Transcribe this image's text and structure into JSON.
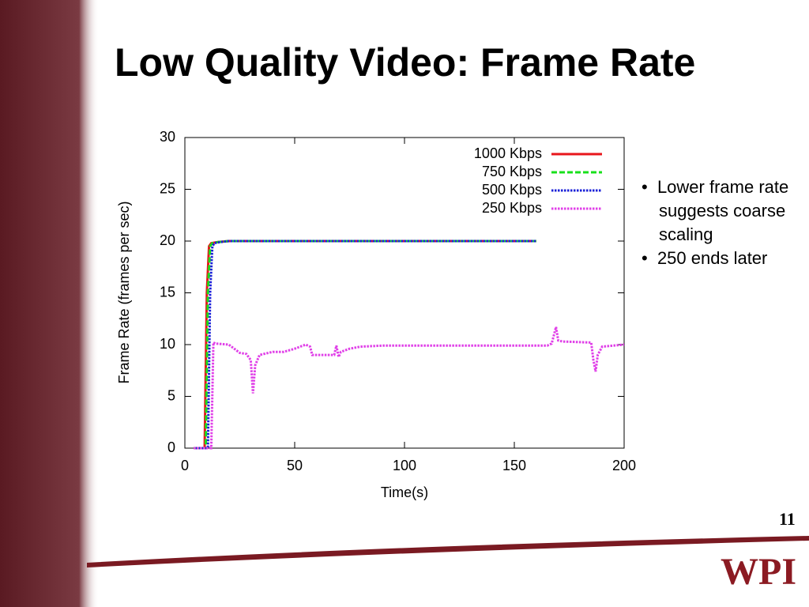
{
  "slide": {
    "title": "Low Quality Video: Frame Rate",
    "bullets": [
      "Lower frame rate suggests coarse scaling",
      "250 ends later"
    ],
    "number": "11",
    "logo": "WPI"
  },
  "chart_data": {
    "type": "line",
    "xlabel": "Time(s)",
    "ylabel": "Frame Rate (frames per sec)",
    "xlim": [
      0,
      200
    ],
    "ylim": [
      0,
      30
    ],
    "xticks": [
      0,
      50,
      100,
      150,
      200
    ],
    "yticks": [
      0,
      5,
      10,
      15,
      20,
      25,
      30
    ],
    "grid": false,
    "legend": "top-right",
    "series": [
      {
        "name": "1000 Kbps",
        "color": "#e8161b",
        "dash": "solid",
        "x": [
          5,
          9,
          10,
          11,
          12,
          15,
          20,
          160
        ],
        "values": [
          0,
          0,
          15,
          19.5,
          19.8,
          19.9,
          20,
          20
        ]
      },
      {
        "name": "750 Kbps",
        "color": "#18e01b",
        "dash": "dashed",
        "x": [
          4,
          9.5,
          10.5,
          11.5,
          12.5,
          15,
          20,
          160
        ],
        "values": [
          0,
          0,
          15,
          19.5,
          19.8,
          19.9,
          20,
          20
        ]
      },
      {
        "name": "500 Kbps",
        "color": "#1b22d8",
        "dash": "dotted",
        "x": [
          5,
          10.5,
          11.5,
          12.5,
          13.5,
          16,
          20,
          160
        ],
        "values": [
          0,
          0,
          15,
          19.5,
          19.8,
          19.9,
          20,
          20
        ]
      },
      {
        "name": "250 Kbps",
        "color": "#e040e8",
        "dash": "dotted",
        "x": [
          4,
          12,
          13,
          14,
          20,
          25,
          28,
          30,
          31,
          32,
          34,
          40,
          45,
          50,
          55,
          57,
          58,
          63,
          68,
          69,
          70,
          71,
          75,
          80,
          90,
          120,
          150,
          165,
          167,
          169,
          170,
          172,
          185,
          186,
          187,
          188,
          190,
          200
        ],
        "values": [
          0,
          0,
          10.2,
          10.1,
          10,
          9.2,
          9.1,
          8.5,
          5.3,
          8,
          9,
          9.3,
          9.3,
          9.6,
          10,
          9.8,
          9,
          9,
          9,
          9.9,
          8.8,
          9.3,
          9.6,
          9.8,
          9.9,
          9.9,
          9.9,
          9.9,
          10.1,
          11.7,
          10.4,
          10.3,
          10.2,
          8.5,
          7.4,
          9,
          9.8,
          10
        ]
      }
    ]
  }
}
